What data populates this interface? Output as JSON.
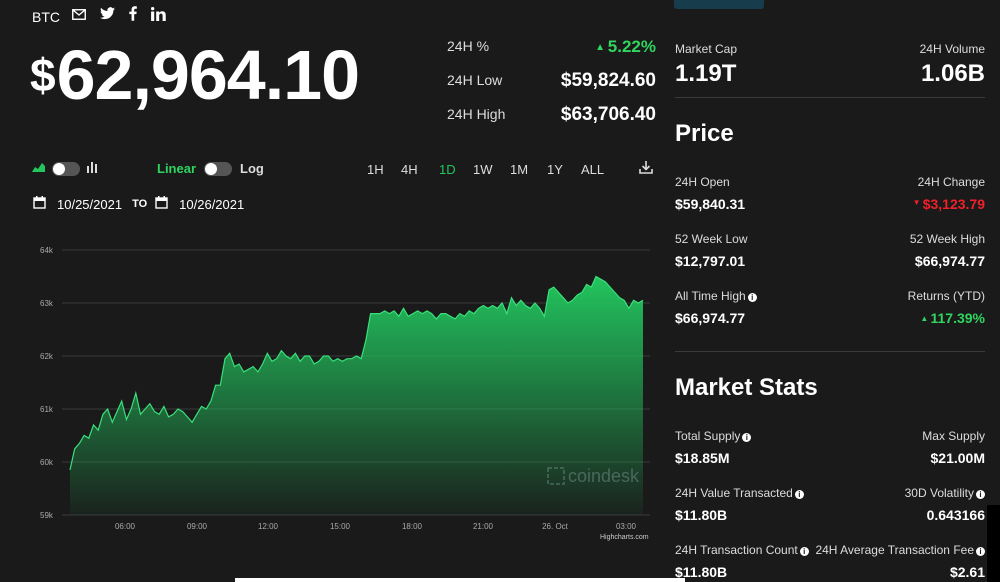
{
  "header": {
    "ticker": "BTC",
    "price_symbol": "$",
    "price_value": "62,964.10",
    "banner_partial": "..."
  },
  "icons": [
    "mail-icon",
    "twitter-icon",
    "facebook-icon",
    "linkedin-icon"
  ],
  "stats_24h": {
    "pct_label": "24H %",
    "pct_value": "5.22%",
    "low_label": "24H Low",
    "low_value": "$59,824.60",
    "high_label": "24H High",
    "high_value": "$63,706.40"
  },
  "controls": {
    "linear": "Linear",
    "log": "Log",
    "ranges": [
      "1H",
      "4H",
      "1D",
      "1W",
      "1M",
      "1Y",
      "ALL"
    ],
    "active_range": "1D",
    "date_from": "10/25/2021",
    "to": "TO",
    "date_to": "10/26/2021"
  },
  "chart_data": {
    "type": "area",
    "y_ticks": [
      "64k",
      "63k",
      "62k",
      "61k",
      "60k",
      "59k"
    ],
    "ylim": [
      59000,
      64000
    ],
    "x_ticks": [
      "06:00",
      "09:00",
      "12:00",
      "15:00",
      "18:00",
      "21:00",
      "26. Oct",
      "03:00"
    ],
    "watermark": "coindesk",
    "credit": "Highcharts.com",
    "series": [
      {
        "values": [
          59850,
          60250,
          60350,
          60500,
          60450,
          60700,
          60600,
          60900,
          61000,
          60750,
          60950,
          61150,
          60800,
          61000,
          61300,
          60900,
          61000,
          61100,
          60950,
          60900,
          61050,
          60850,
          60900,
          61000,
          60950,
          60850,
          60750,
          60900,
          61050,
          61000,
          61150,
          61450,
          61450,
          61950,
          62050,
          61800,
          61850,
          61700,
          61750,
          61800,
          61700,
          61850,
          62050,
          61900,
          61950,
          62100,
          62000,
          61950,
          62050,
          61900,
          62000,
          62000,
          61850,
          61900,
          62000,
          62000,
          61900,
          61950,
          61900,
          61950,
          61950,
          62000,
          61950,
          62300,
          62800,
          62800,
          62800,
          62850,
          62800,
          62850,
          62750,
          62900,
          62750,
          62800,
          62850,
          62800,
          62850,
          62800,
          62700,
          62800,
          62800,
          62750,
          62700,
          62800,
          62750,
          62850,
          62800,
          62900,
          62950,
          62900,
          62950,
          62900,
          63000,
          62800,
          63100,
          62950,
          63050,
          62950,
          62900,
          63000,
          62900,
          62750,
          63250,
          63300,
          63200,
          63100,
          63000,
          63050,
          63150,
          63200,
          63350,
          63300,
          63500,
          63450,
          63400,
          63300,
          63200,
          63100,
          63050,
          62900,
          63050,
          63000,
          63050
        ],
        "area_color": "#22c55e"
      }
    ]
  },
  "right": {
    "market_cap_label": "Market Cap",
    "market_cap_value": "1.19T",
    "volume_label": "24H Volume",
    "volume_value": "1.06B",
    "price_title": "Price",
    "open_label": "24H Open",
    "open_value": "$59,840.31",
    "change_label": "24H Change",
    "change_value": "$3,123.79",
    "wk52_low_label": "52 Week Low",
    "wk52_low_value": "$12,797.01",
    "wk52_high_label": "52 Week High",
    "wk52_high_value": "$66,974.77",
    "ath_label": "All Time High",
    "ath_value": "$66,974.77",
    "ytd_label": "Returns (YTD)",
    "ytd_value": "117.39%",
    "market_stats_title": "Market Stats",
    "total_supply_label": "Total Supply",
    "total_supply_value": "$18.85M",
    "max_supply_label": "Max Supply",
    "max_supply_value": "$21.00M",
    "value_tx_label": "24H Value Transacted",
    "value_tx_value": "$11.80B",
    "vol30_label": "30D Volatility",
    "vol30_value": "0.643166",
    "tx_count_label": "24H Transaction Count",
    "tx_count_value": "$11.80B",
    "avg_fee_label": "24H Average Transaction Fee",
    "avg_fee_value": "$2.61"
  },
  "colors": {
    "background": "#1a1a1a",
    "up": "#2fd55f",
    "down": "#f0202a",
    "chart_green": "#22c55e"
  }
}
